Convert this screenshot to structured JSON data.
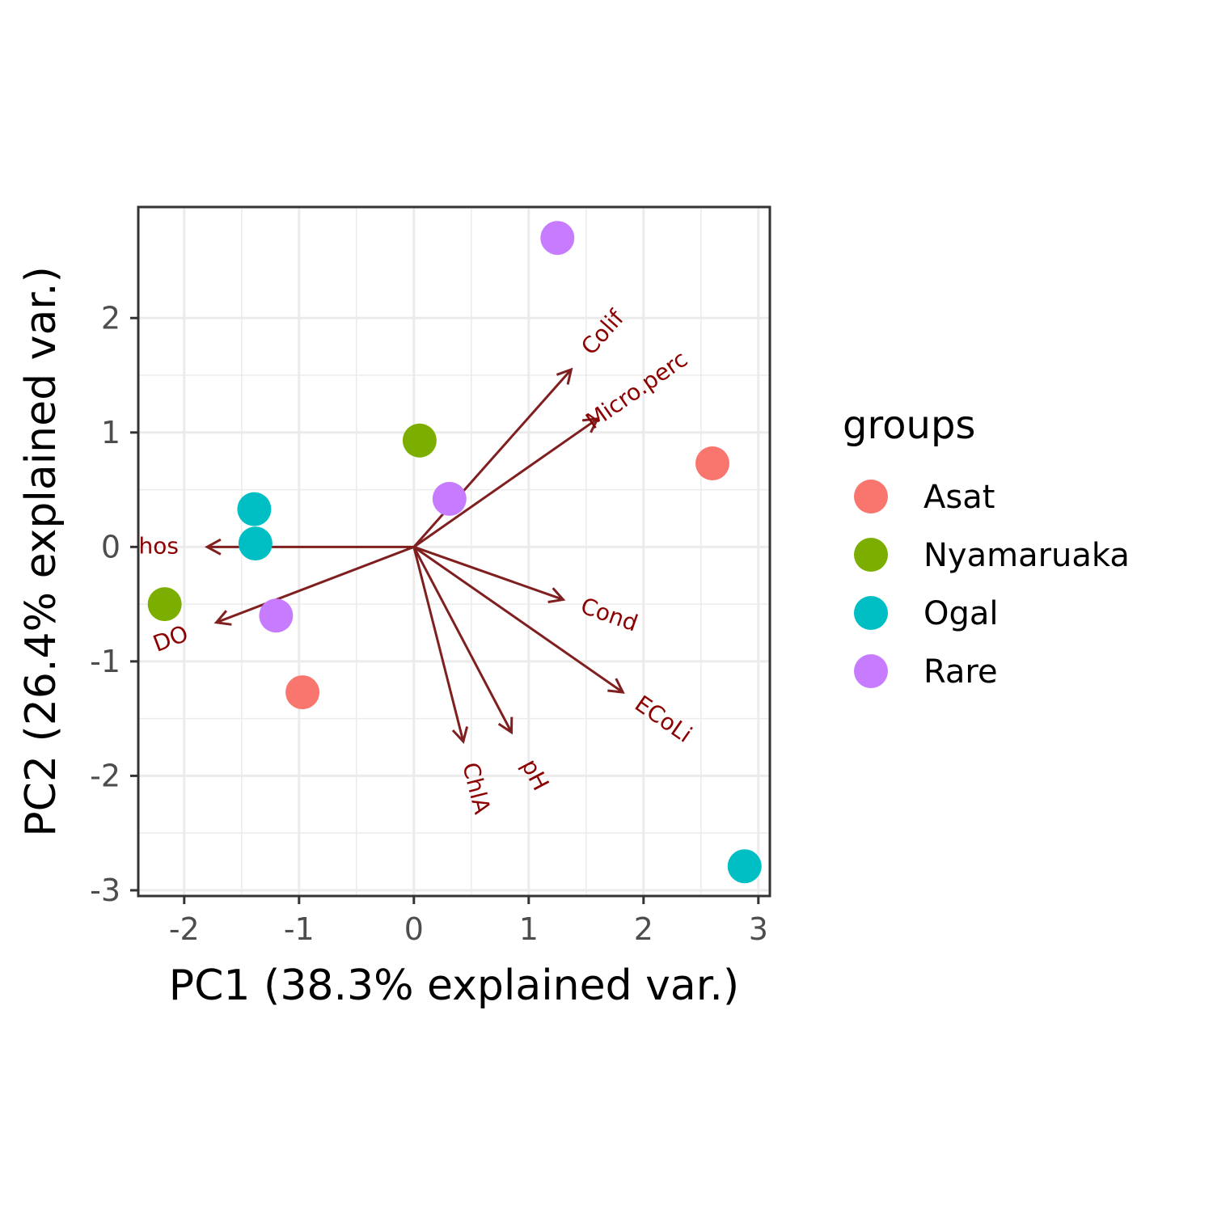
{
  "chart_data": {
    "type": "scatter",
    "subtype": "pca-biplot",
    "xlabel": "PC1 (38.3% explained var.)",
    "ylabel": "PC2 (26.4% explained var.)",
    "xlim": [
      -2.4,
      3.1
    ],
    "ylim": [
      -3.05,
      2.97
    ],
    "x_ticks": [
      -2,
      -1,
      0,
      1,
      2,
      3
    ],
    "x_tick_labels": [
      "-2",
      "-1",
      "0",
      "1",
      "2",
      "3"
    ],
    "y_ticks": [
      -3,
      -2,
      -1,
      0,
      1,
      2
    ],
    "y_tick_labels": [
      "-3",
      "-2",
      "-1",
      "0",
      "1",
      "2"
    ],
    "grid": true,
    "legend": {
      "title": "groups",
      "placement": "right",
      "entries": [
        {
          "name": "Asat",
          "color": "#F8766D"
        },
        {
          "name": "Nyamaruaka",
          "color": "#7CAE00"
        },
        {
          "name": "Ogal",
          "color": "#00BFC4"
        },
        {
          "name": "Rare",
          "color": "#C77CFF"
        }
      ]
    },
    "points": [
      {
        "group": "Rare",
        "x": 1.25,
        "y": 2.7
      },
      {
        "group": "Nyamaruaka",
        "x": 0.05,
        "y": 0.93
      },
      {
        "group": "Asat",
        "x": 2.6,
        "y": 0.73
      },
      {
        "group": "Rare",
        "x": 0.31,
        "y": 0.42
      },
      {
        "group": "Ogal",
        "x": -1.39,
        "y": 0.33
      },
      {
        "group": "Ogal",
        "x": -1.38,
        "y": 0.03
      },
      {
        "group": "Nyamaruaka",
        "x": -2.17,
        "y": -0.5
      },
      {
        "group": "Rare",
        "x": -1.2,
        "y": -0.6
      },
      {
        "group": "Asat",
        "x": -0.97,
        "y": -1.27
      },
      {
        "group": "Ogal",
        "x": 2.88,
        "y": -2.79
      }
    ],
    "vectors": {
      "color": "#7f1f1f",
      "label_color": "#8b0000",
      "origin": [
        0,
        0
      ],
      "items": [
        {
          "label": "Colif",
          "x": 1.37,
          "y": 1.55
        },
        {
          "label": "Micro.perc",
          "x": 1.6,
          "y": 1.12
        },
        {
          "label": "hos",
          "x": -1.8,
          "y": 0.0
        },
        {
          "label": "DO",
          "x": -1.72,
          "y": -0.66
        },
        {
          "label": "Cond",
          "x": 1.3,
          "y": -0.46
        },
        {
          "label": "ECoLi",
          "x": 1.82,
          "y": -1.27
        },
        {
          "label": "pH",
          "x": 0.85,
          "y": -1.62
        },
        {
          "label": "ChlA",
          "x": 0.43,
          "y": -1.7
        }
      ]
    }
  }
}
